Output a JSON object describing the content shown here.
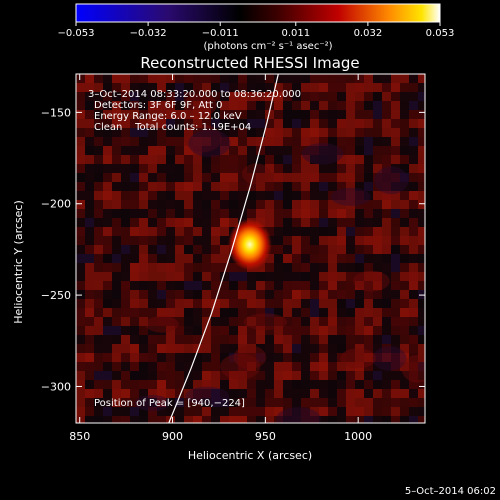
{
  "chart_data": {
    "type": "heatmap",
    "title": "Reconstructed RHESSI Image",
    "xlabel": "Heliocentric X (arcsec)",
    "ylabel": "Heliocentric Y (arcsec)",
    "xlim": [
      848,
      1036
    ],
    "ylim": [
      -320,
      -129
    ],
    "x_ticks": [
      850,
      900,
      950,
      1000
    ],
    "y_ticks": [
      -150,
      -200,
      -250,
      -300
    ],
    "x_tick_labels": [
      "850",
      "900",
      "950",
      "1000"
    ],
    "y_tick_labels": [
      "−150",
      "−200",
      "−250",
      "−300"
    ],
    "colorbar": {
      "min": -0.053,
      "max": 0.053,
      "ticks": [
        -0.053,
        -0.032,
        -0.011,
        0.011,
        0.032,
        0.053
      ],
      "tick_labels": [
        "−0.053",
        "−0.032",
        "−0.011",
        "0.011",
        "0.032",
        "0.053"
      ],
      "unit_text": "(photons cm⁻² s⁻¹ asec⁻²)",
      "colormap": "blue-purple-red-yellow-white"
    },
    "annotations": [
      "3–Oct–2014 08:33:20.000 to 08:36:20.000",
      "Detectors: 3F 6F 9F, Att 0",
      "Energy Range: 6.0 – 12.0 keV",
      "Clean    Total counts: 1.19E+04"
    ],
    "peak_label": "Position of Peak = [940,−224]",
    "peak": {
      "x": 940,
      "y": -224
    },
    "limb_points": [
      {
        "x": 898,
        "y": -320
      },
      {
        "x": 910,
        "y": -290
      },
      {
        "x": 921,
        "y": -260
      },
      {
        "x": 932,
        "y": -225
      },
      {
        "x": 942,
        "y": -190
      },
      {
        "x": 951,
        "y": -155
      },
      {
        "x": 957,
        "y": -129
      }
    ],
    "footer": "5–Oct–2014 06:02",
    "grid": false
  }
}
